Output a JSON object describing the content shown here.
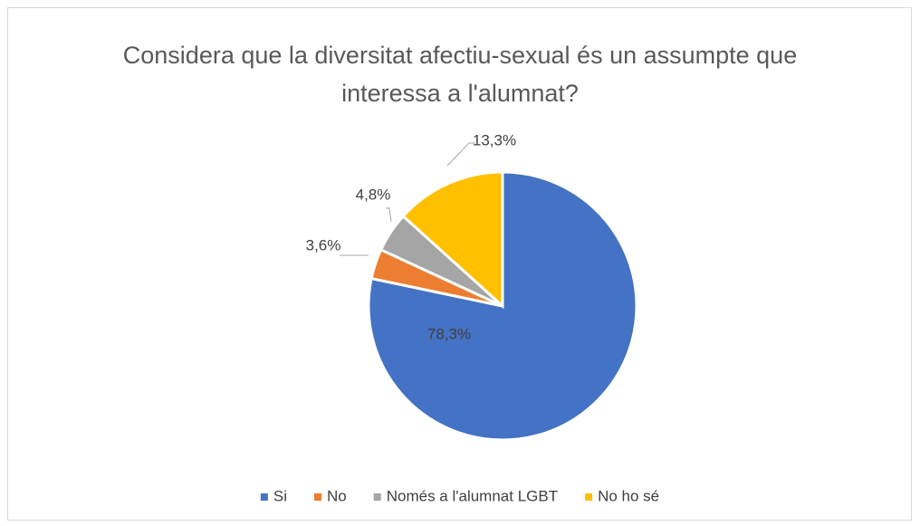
{
  "chart_data": {
    "type": "pie",
    "title": "Considera que la diversitat afectiu-sexual és un assumpte que interessa a l'alumnat?",
    "categories": [
      "Si",
      "No",
      "Només a l'alumnat LGBT",
      "No ho  sé"
    ],
    "values": [
      78.3,
      3.6,
      4.8,
      13.3
    ],
    "value_labels": [
      "78,3%",
      "3,6%",
      "4,8%",
      "13,3%"
    ],
    "colors": [
      "#4472c4",
      "#ed7d31",
      "#a5a5a5",
      "#ffc000"
    ],
    "legend": "bottom"
  }
}
